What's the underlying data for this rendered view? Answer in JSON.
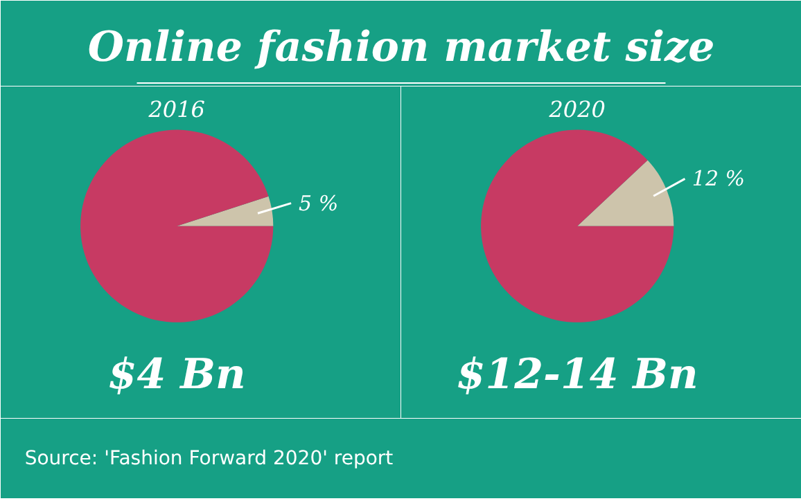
{
  "chart_data": [
    {
      "type": "other",
      "title": "Online fashion market size"
    },
    {
      "type": "pie",
      "title": "2016",
      "categories": [
        null,
        null
      ],
      "values": [
        5,
        95
      ],
      "colors": [
        "#cdc4ab",
        "#c73a63"
      ],
      "value_labels": [
        "5 %",
        null
      ],
      "annotations": [
        "$4 Bn"
      ]
    },
    {
      "type": "pie",
      "title": "2020",
      "categories": [
        null,
        null
      ],
      "values": [
        12,
        88
      ],
      "colors": [
        "#cdc4ab",
        "#c73a63"
      ],
      "value_labels": [
        "12 %",
        null
      ],
      "annotations": [
        "$12-14 Bn"
      ]
    },
    {
      "type": "other",
      "annotations": [
        "Source: 'Fashion Forward 2020' report"
      ]
    }
  ]
}
